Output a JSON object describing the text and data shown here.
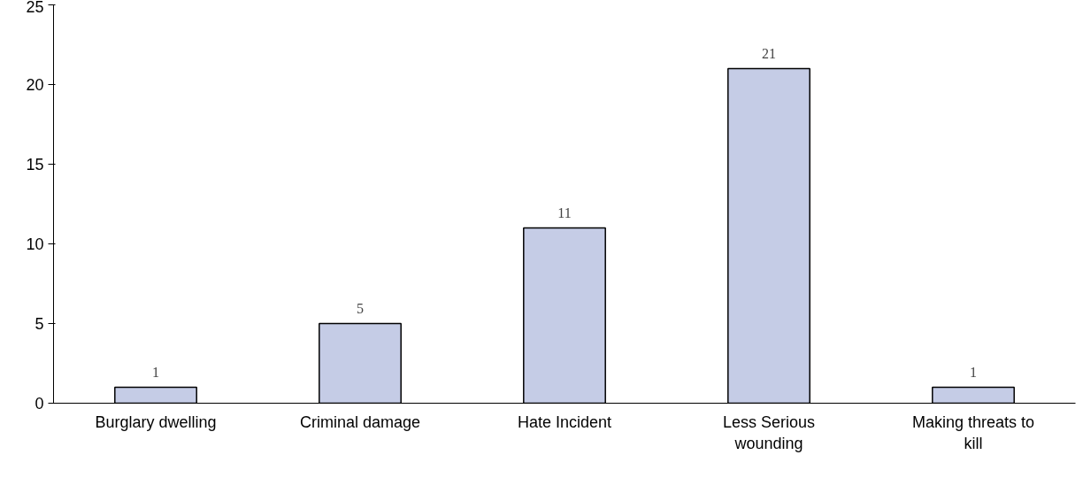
{
  "chart_data": {
    "type": "bar",
    "categories": [
      "Burglary dwelling",
      "Criminal damage",
      "Hate Incident",
      "Less Serious wounding",
      "Making threats to kill"
    ],
    "values": [
      1,
      5,
      11,
      21,
      1
    ],
    "color": "#c5cce6",
    "ylim": [
      0,
      25
    ],
    "yticks": [
      0,
      5,
      10,
      15,
      20,
      25
    ],
    "grid": false,
    "data_labels": true
  }
}
